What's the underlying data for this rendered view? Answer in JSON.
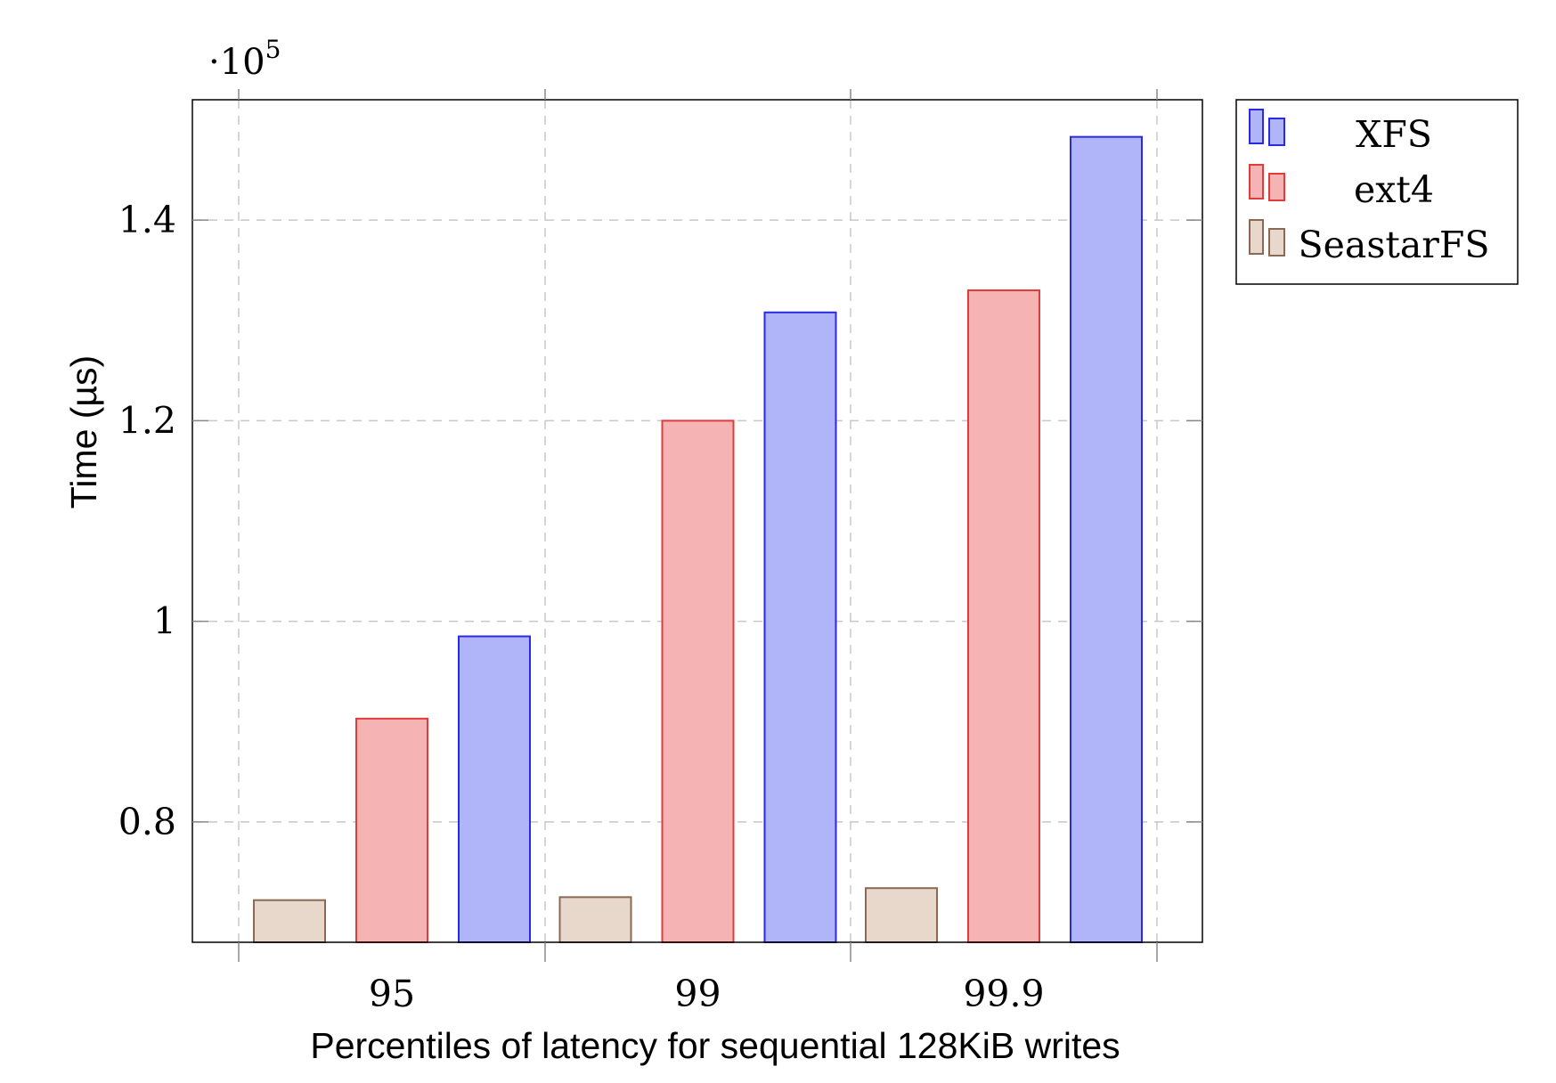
{
  "chart_data": {
    "type": "bar",
    "categories": [
      "95",
      "99",
      "99.9"
    ],
    "series": [
      {
        "name": "SeastarFS",
        "values": [
          72200,
          72500,
          73400
        ],
        "fill": "#e8d8cc",
        "stroke": "#8b6a55"
      },
      {
        "name": "ext4",
        "values": [
          90300,
          120000,
          133000
        ],
        "fill": "#f5b3b3",
        "stroke": "#e03c3c"
      },
      {
        "name": "XFS",
        "values": [
          98500,
          130800,
          148300
        ],
        "fill": "#b0b4f8",
        "stroke": "#2a2ae0"
      }
    ],
    "legend_order": [
      "XFS",
      "ext4",
      "SeastarFS"
    ],
    "xlabel": "Percentiles of latency for sequential 128KiB writes",
    "ylabel": "Time (µs)",
    "ylim": [
      68000,
      152000
    ],
    "yticks": [
      80000,
      100000,
      120000,
      140000
    ],
    "ytick_labels": [
      "0.8",
      "1",
      "1.2",
      "1.4"
    ],
    "scale_multiplier": "·10",
    "scale_exponent": "5",
    "grid": true,
    "legend_position": "outside-top-right"
  }
}
